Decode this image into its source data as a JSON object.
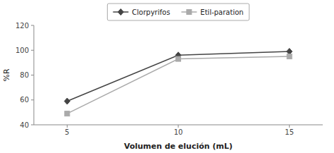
{
  "chart_data": {
    "type": "line",
    "x": [
      5,
      10,
      15
    ],
    "xlabel": "Volumen de elución (mL)",
    "ylabel": "%R",
    "xlim": [
      3.5,
      16.5
    ],
    "xticks": [
      5,
      10,
      15
    ],
    "ylim": [
      40,
      120
    ],
    "yticks": [
      40,
      60,
      80,
      100,
      120
    ],
    "grid": false,
    "legend": "top",
    "series": [
      {
        "name": "Clorpyrifos",
        "color": "#444444",
        "marker": "diamond",
        "values": [
          59,
          96,
          99
        ]
      },
      {
        "name": "Etil-paration",
        "color": "#aaaaaa",
        "marker": "square",
        "values": [
          49,
          93,
          95
        ]
      }
    ]
  }
}
